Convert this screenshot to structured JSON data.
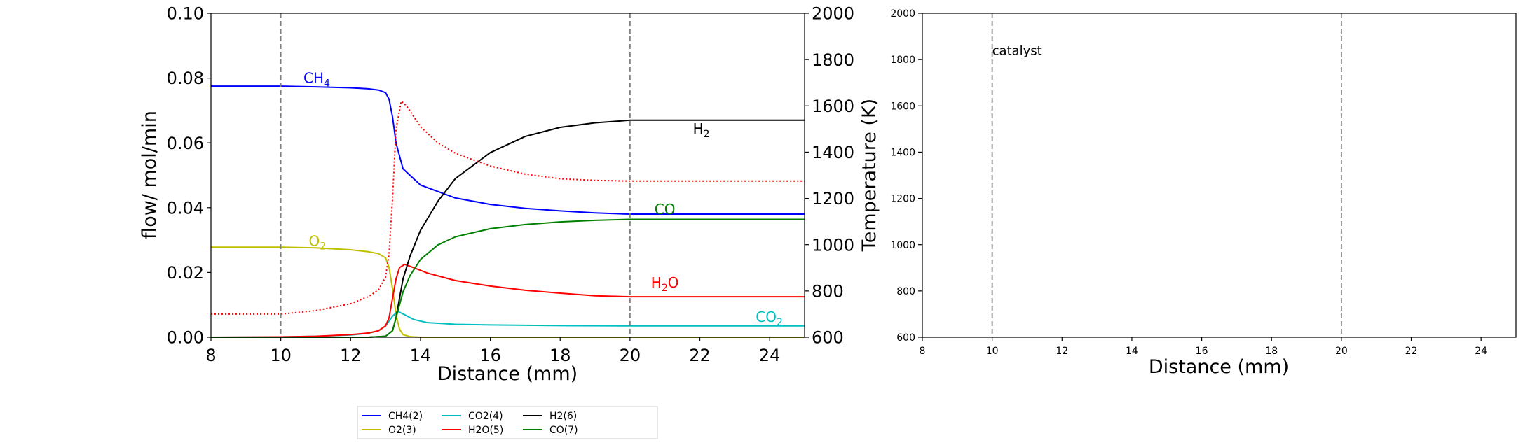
{
  "chart_data": [
    {
      "type": "line",
      "xlabel": "Distance (mm)",
      "ylabel": "flow/ mol/min",
      "y2label": "Temperature (K)",
      "xlim": [
        8,
        25
      ],
      "ylim": [
        0,
        0.1
      ],
      "y2lim": [
        600,
        2000
      ],
      "xticks": [
        "8",
        "10",
        "12",
        "14",
        "16",
        "18",
        "20",
        "22",
        "24"
      ],
      "yticks": [
        "0.00",
        "0.02",
        "0.04",
        "0.06",
        "0.08",
        "0.10"
      ],
      "y2ticks": [
        "600",
        "800",
        "1000",
        "1200",
        "1400",
        "1600",
        "1800",
        "2000"
      ],
      "vlines": [
        10,
        20
      ],
      "grid": false,
      "series": [
        {
          "name": "CH4(2)",
          "color": "#0000ff",
          "style": "solid",
          "x": [
            8,
            10,
            11,
            12,
            12.5,
            12.8,
            13.0,
            13.1,
            13.2,
            13.3,
            13.5,
            14,
            15,
            16,
            17,
            18,
            19,
            20,
            21,
            22,
            23,
            24,
            25
          ],
          "y": [
            0.0775,
            0.0775,
            0.0773,
            0.077,
            0.0767,
            0.0763,
            0.0755,
            0.0735,
            0.068,
            0.06,
            0.052,
            0.047,
            0.043,
            0.041,
            0.0398,
            0.039,
            0.0384,
            0.038,
            0.038,
            0.038,
            0.038,
            0.038,
            0.038
          ]
        },
        {
          "name": "O2(3)",
          "color": "#bfbf00",
          "style": "solid",
          "x": [
            8,
            10,
            11,
            12,
            12.5,
            12.8,
            13.0,
            13.1,
            13.2,
            13.3,
            13.4,
            13.5,
            13.7,
            14,
            25
          ],
          "y": [
            0.0278,
            0.0278,
            0.0276,
            0.027,
            0.0264,
            0.0258,
            0.0245,
            0.0215,
            0.015,
            0.007,
            0.0025,
            0.0008,
            0.0002,
            0.0,
            0.0
          ]
        },
        {
          "name": "CO2(4)",
          "color": "#00bfbf",
          "style": "solid",
          "x": [
            8,
            10,
            11,
            12,
            12.5,
            12.8,
            13.0,
            13.2,
            13.35,
            13.5,
            13.8,
            14.2,
            15,
            16,
            18,
            20,
            25
          ],
          "y": [
            0.0,
            0.0001,
            0.0003,
            0.0007,
            0.0012,
            0.002,
            0.0035,
            0.0065,
            0.008,
            0.0072,
            0.0055,
            0.0045,
            0.004,
            0.0038,
            0.0036,
            0.0035,
            0.0035
          ]
        },
        {
          "name": "H2O(5)",
          "color": "#ff0000",
          "style": "solid",
          "x": [
            8,
            10,
            11,
            12,
            12.5,
            12.8,
            13.0,
            13.1,
            13.2,
            13.3,
            13.4,
            13.55,
            13.8,
            14.2,
            15,
            16,
            17,
            18,
            19,
            20,
            25
          ],
          "y": [
            0.0,
            0.0001,
            0.0003,
            0.0008,
            0.0013,
            0.002,
            0.0035,
            0.006,
            0.012,
            0.018,
            0.0215,
            0.0225,
            0.0215,
            0.0198,
            0.0175,
            0.0158,
            0.0145,
            0.0136,
            0.0128,
            0.0125,
            0.0125
          ]
        },
        {
          "name": "H2(6)",
          "color": "#000000",
          "style": "solid",
          "x": [
            8,
            12.5,
            13.0,
            13.2,
            13.3,
            13.4,
            13.5,
            13.7,
            14,
            14.5,
            15,
            16,
            17,
            18,
            19,
            20,
            25
          ],
          "y": [
            0.0,
            0.0,
            0.0003,
            0.002,
            0.006,
            0.012,
            0.018,
            0.025,
            0.033,
            0.042,
            0.049,
            0.057,
            0.062,
            0.0648,
            0.0662,
            0.067,
            0.067
          ]
        },
        {
          "name": "CO(7)",
          "color": "#008000",
          "style": "solid",
          "x": [
            8,
            12.5,
            13.0,
            13.2,
            13.3,
            13.4,
            13.5,
            13.7,
            14,
            14.5,
            15,
            16,
            17,
            18,
            19,
            20,
            25
          ],
          "y": [
            0.0,
            0.0,
            0.0003,
            0.002,
            0.006,
            0.01,
            0.014,
            0.019,
            0.024,
            0.0285,
            0.031,
            0.0335,
            0.0348,
            0.0356,
            0.0361,
            0.0364,
            0.0364
          ]
        },
        {
          "name": "",
          "color": "#ff0000",
          "style": "dotted",
          "axis": "right",
          "x": [
            8,
            10,
            11,
            12,
            12.5,
            12.8,
            13.0,
            13.1,
            13.2,
            13.3,
            13.45,
            13.6,
            14,
            14.5,
            15,
            16,
            17,
            18,
            19,
            20,
            25
          ],
          "y": [
            700,
            700,
            715,
            745,
            775,
            805,
            860,
            960,
            1200,
            1500,
            1620,
            1600,
            1510,
            1440,
            1395,
            1340,
            1305,
            1285,
            1278,
            1275,
            1275
          ]
        }
      ],
      "annotations": [
        {
          "text": "CH",
          "sub": "4",
          "x": 10.65,
          "y": 0.0785,
          "color": "#0000ff"
        },
        {
          "text": "O",
          "sub": "2",
          "x": 10.8,
          "y": 0.0282,
          "color": "#bfbf00"
        },
        {
          "text": "H",
          "sub": "2",
          "x": 21.8,
          "y": 0.0628,
          "color": "#000000"
        },
        {
          "text": "CO",
          "sub": "",
          "x": 20.7,
          "y": 0.038,
          "color": "#008000"
        },
        {
          "text": "H",
          "sub": "2",
          "tail": "O",
          "x": 20.6,
          "y": 0.0153,
          "color": "#ff0000"
        },
        {
          "text": "CO",
          "sub": "2",
          "x": 23.6,
          "y": 0.0048,
          "color": "#00bfbf"
        }
      ],
      "legend": {
        "placement": "bottom",
        "columns": 4,
        "entries": [
          {
            "label": "CH4(2)",
            "color": "#0000ff"
          },
          {
            "label": "O2(3)",
            "color": "#bfbf00"
          },
          {
            "label": "CO2(4)",
            "color": "#00bfbf"
          },
          {
            "label": "H2O(5)",
            "color": "#ff0000"
          },
          {
            "label": "H2(6)",
            "color": "#000000"
          },
          {
            "label": "CO(7)",
            "color": "#008000"
          }
        ]
      }
    },
    {
      "type": "line",
      "xlabel": "Distance (mm)",
      "xlim": [
        8,
        25
      ],
      "ylim": [
        600,
        2000
      ],
      "xticks": [
        "8",
        "10",
        "12",
        "14",
        "16",
        "18",
        "20",
        "22",
        "24"
      ],
      "yticks": [
        "600",
        "800",
        "1000",
        "1200",
        "1400",
        "1600",
        "1800",
        "2000"
      ],
      "vlines": [
        10,
        20
      ],
      "grid": false,
      "series": [],
      "annotations": [
        {
          "text": "catalyst",
          "x": 10.0,
          "y": 1820,
          "color": "#000000"
        }
      ]
    }
  ]
}
